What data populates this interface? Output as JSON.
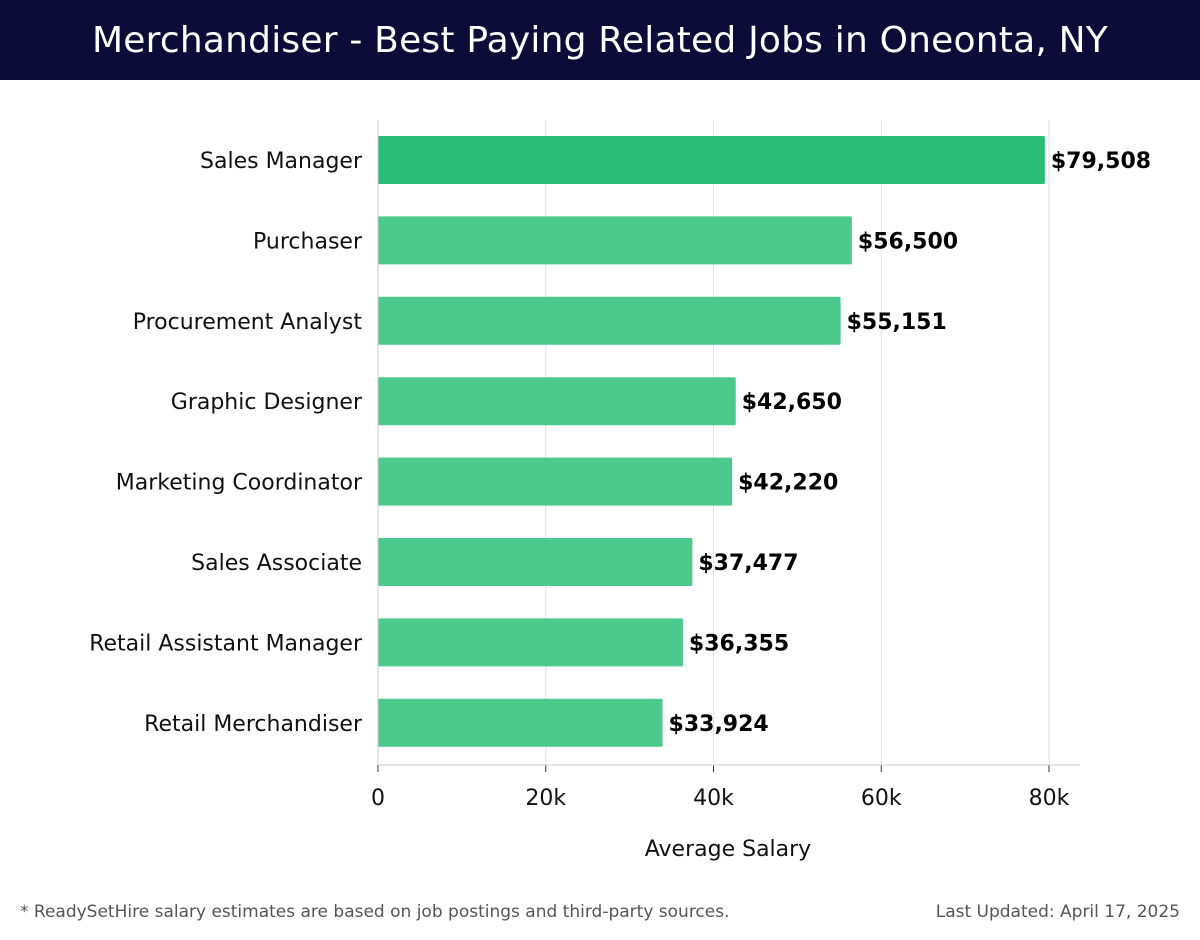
{
  "header": {
    "title": "Merchandiser - Best Paying Related Jobs in Oneonta, NY"
  },
  "footer": {
    "note": "* ReadySetHire salary estimates are based on job postings and third-party sources.",
    "updated": "Last Updated: April 17, 2025"
  },
  "colors": {
    "header_bg": "#0b0c38",
    "bar_top": "#2bbd77",
    "bar": "#4cc98c"
  },
  "chart_data": {
    "type": "bar",
    "orientation": "horizontal",
    "title": "Merchandiser - Best Paying Related Jobs in Oneonta, NY",
    "xlabel": "Average Salary",
    "ylabel": "",
    "categories": [
      "Sales Manager",
      "Purchaser",
      "Procurement Analyst",
      "Graphic Designer",
      "Marketing Coordinator",
      "Sales Associate",
      "Retail Assistant Manager",
      "Retail Merchandiser"
    ],
    "values": [
      79508,
      56500,
      55151,
      42650,
      42220,
      37477,
      36355,
      33924
    ],
    "value_labels": [
      "$79,508",
      "$56,500",
      "$55,151",
      "$42,650",
      "$42,220",
      "$37,477",
      "$36,355",
      "$33,924"
    ],
    "xlim": [
      0,
      84000
    ],
    "xticks": [
      0,
      20000,
      40000,
      60000,
      80000
    ],
    "xtick_labels": [
      "0",
      "20k",
      "40k",
      "60k",
      "80k"
    ],
    "grid": true,
    "legend": "none"
  }
}
